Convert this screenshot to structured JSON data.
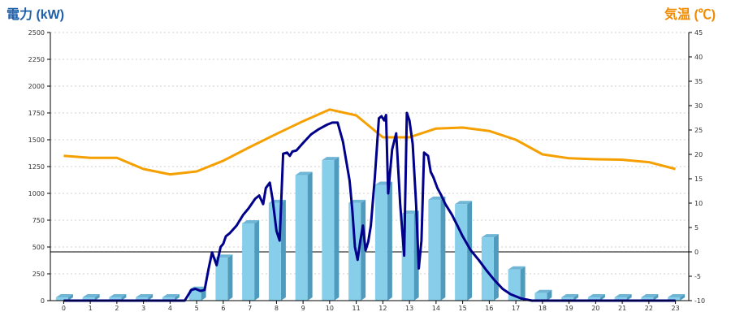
{
  "chart_data": {
    "type": "bar",
    "left_axis_label": "電力 (kW)",
    "right_axis_label": "気温 (℃)",
    "categories": [
      "0",
      "1",
      "2",
      "3",
      "4",
      "5",
      "6",
      "7",
      "8",
      "9",
      "10",
      "11",
      "12",
      "13",
      "14",
      "15",
      "16",
      "17",
      "18",
      "19",
      "20",
      "21",
      "22",
      "23"
    ],
    "y_left": {
      "min": 0,
      "max": 2500,
      "ticks": [
        "0",
        "250",
        "500",
        "750",
        "1000",
        "1250",
        "1500",
        "1750",
        "2000",
        "2250",
        "2500"
      ]
    },
    "y_right": {
      "min": -10,
      "max": 45,
      "ticks": [
        "-10",
        "-5",
        "0",
        "5",
        "10",
        "15",
        "20",
        "25",
        "30",
        "35",
        "40",
        "45"
      ]
    },
    "grid": true,
    "colors": {
      "bars": "#87ceeb",
      "bar_side": "#4f9bbd",
      "power_line": "#00008b",
      "temperature_line": "#f5a000",
      "left_label": "#1f5fa8",
      "right_label": "#f08a00"
    },
    "series": [
      {
        "kind": "bar",
        "axis": "left",
        "values": [
          30,
          30,
          30,
          30,
          30,
          100,
          400,
          720,
          910,
          1170,
          1310,
          910,
          1080,
          810,
          940,
          900,
          590,
          290,
          70,
          30,
          30,
          30,
          30,
          30
        ]
      },
      {
        "kind": "line",
        "axis": "right",
        "x": [
          0,
          1,
          2,
          3,
          4,
          5,
          6,
          7,
          8,
          9,
          10,
          11,
          12,
          13,
          14,
          15,
          16,
          17,
          18,
          19,
          20,
          21,
          22,
          23
        ],
        "y": [
          19.7,
          19.3,
          19.3,
          17,
          15.9,
          16.5,
          18.7,
          21.5,
          24.2,
          26.8,
          29.2,
          28,
          23.5,
          23.5,
          25.3,
          25.5,
          24.8,
          23,
          20,
          19.2,
          19,
          18.9,
          18.4,
          17
        ]
      },
      {
        "kind": "line",
        "axis": "left",
        "x": [
          0,
          4.55,
          4.8,
          4.95,
          5.15,
          5.3,
          5.45,
          5.58,
          5.75,
          5.9,
          6.0,
          6.1,
          6.25,
          6.5,
          6.75,
          6.95,
          7.2,
          7.35,
          7.5,
          7.6,
          7.75,
          7.85,
          8.0,
          8.12,
          8.25,
          8.4,
          8.5,
          8.6,
          8.75,
          9.0,
          9.3,
          9.6,
          9.9,
          10.1,
          10.3,
          10.5,
          10.75,
          10.85,
          10.95,
          11.05,
          11.15,
          11.25,
          11.35,
          11.45,
          11.55,
          11.7,
          11.85,
          11.95,
          12.05,
          12.12,
          12.2,
          12.35,
          12.5,
          12.65,
          12.8,
          12.9,
          13.0,
          13.12,
          13.25,
          13.35,
          13.45,
          13.55,
          13.7,
          13.8,
          13.9,
          14.05,
          14.2,
          14.35,
          14.6,
          14.8,
          15.0,
          15.3,
          15.6,
          15.9,
          16.2,
          16.5,
          16.8,
          17.2,
          17.6,
          18.0,
          18.3,
          23.0
        ],
        "y": [
          0,
          0,
          100,
          110,
          90,
          100,
          300,
          450,
          330,
          500,
          530,
          600,
          630,
          700,
          800,
          860,
          950,
          980,
          900,
          1050,
          1100,
          950,
          650,
          560,
          1370,
          1380,
          1350,
          1390,
          1400,
          1470,
          1550,
          1600,
          1640,
          1660,
          1660,
          1480,
          1120,
          850,
          500,
          380,
          550,
          700,
          470,
          550,
          700,
          1150,
          1700,
          1720,
          1680,
          1730,
          1000,
          1410,
          1560,
          900,
          420,
          1750,
          1680,
          1460,
          900,
          300,
          560,
          1380,
          1350,
          1200,
          1150,
          1050,
          980,
          900,
          800,
          700,
          600,
          470,
          380,
          280,
          190,
          110,
          60,
          20,
          0,
          0,
          0,
          0
        ]
      }
    ]
  }
}
